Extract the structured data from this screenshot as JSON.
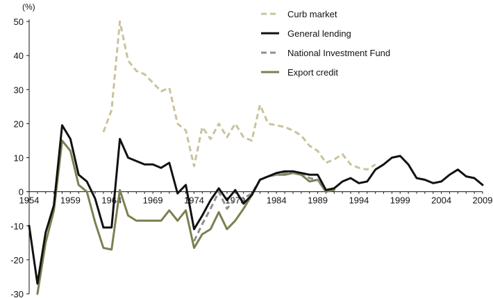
{
  "chart_data": {
    "type": "line",
    "y_unit": "(%)",
    "ylim": [
      -30,
      50
    ],
    "y_ticks": [
      -30,
      -20,
      -10,
      0,
      10,
      20,
      30,
      40,
      50
    ],
    "xlim": [
      1954,
      2009
    ],
    "x_ticks": [
      1954,
      1959,
      1964,
      1969,
      1974,
      1979,
      1984,
      1989,
      1994,
      1999,
      2004,
      2009
    ],
    "x_tick_labels": [
      "1954",
      "1959",
      "1964",
      "1969",
      "1974",
      "1979",
      "1984",
      "1989",
      "1994",
      "1999",
      "2004",
      "2009"
    ],
    "legend_position": "top-right",
    "grid": false,
    "series": [
      {
        "name": "Curb market",
        "color": "#c9c39c",
        "dash": "dashed",
        "x": [
          1963,
          1964,
          1965,
          1966,
          1967,
          1968,
          1969,
          1970,
          1971,
          1972,
          1973,
          1974,
          1975,
          1976,
          1977,
          1978,
          1979,
          1980,
          1981,
          1982,
          1983,
          1984,
          1985,
          1986,
          1987,
          1988,
          1989,
          1990,
          1991,
          1992,
          1993,
          1994,
          1995,
          1996
        ],
        "y": [
          17.5,
          24,
          50,
          38.5,
          35.5,
          34.5,
          32,
          29.5,
          30.5,
          20,
          18,
          7.5,
          19,
          15.5,
          20,
          16,
          20,
          16,
          15,
          25.5,
          20,
          19.5,
          19,
          18,
          16.5,
          13.5,
          12,
          8.5,
          9.5,
          11,
          8,
          7,
          6.5,
          8
        ]
      },
      {
        "name": "General lending",
        "color": "#111111",
        "dash": "solid",
        "x": [
          1954,
          1955,
          1956,
          1957,
          1958,
          1959,
          1960,
          1961,
          1962,
          1963,
          1964,
          1965,
          1966,
          1967,
          1968,
          1969,
          1970,
          1971,
          1972,
          1973,
          1974,
          1975,
          1976,
          1977,
          1978,
          1979,
          1980,
          1981,
          1982,
          1983,
          1984,
          1985,
          1986,
          1987,
          1988,
          1989,
          1990,
          1991,
          1992,
          1993,
          1994,
          1995,
          1996,
          1997,
          1998,
          1999,
          2000,
          2001,
          2002,
          2003,
          2004,
          2005,
          2006,
          2007,
          2008,
          2009
        ],
        "y": [
          -10,
          -27,
          -12,
          -4,
          19.5,
          15.5,
          5,
          3,
          -2,
          -10.5,
          -10.5,
          15.5,
          10,
          9,
          8,
          8,
          7,
          8.5,
          -0.5,
          2,
          -11,
          -7,
          -2.5,
          1,
          -2.5,
          0.5,
          -3.5,
          -1,
          3.5,
          4.5,
          5.5,
          6,
          6,
          5.5,
          5,
          5,
          0.5,
          1,
          3,
          4,
          2.5,
          3,
          6.5,
          8,
          10,
          10.5,
          8,
          4,
          3.5,
          2.5,
          3,
          5,
          6.5,
          4.5,
          4,
          2
        ]
      },
      {
        "name": "National Investment Fund",
        "color": "#8f8f8f",
        "dash": "dashed",
        "x": [
          1974,
          1975,
          1976,
          1977,
          1978,
          1979,
          1980,
          1981,
          1982,
          1983,
          1984,
          1985,
          1986,
          1987,
          1988,
          1989,
          1990
        ],
        "y": [
          -14.5,
          -9.5,
          -5,
          0,
          -5,
          -2,
          -2,
          -0.5,
          3.5,
          4.5,
          5,
          5.5,
          5.5,
          5.5,
          4,
          3.5,
          0.5
        ]
      },
      {
        "name": "Export credit",
        "color": "#7d7f4f",
        "dash": "solid",
        "x": [
          1954,
          1955,
          1956,
          1957,
          1958,
          1959,
          1960,
          1961,
          1962,
          1963,
          1964,
          1965,
          1966,
          1967,
          1968,
          1969,
          1970,
          1971,
          1972,
          1973,
          1974,
          1975,
          1976,
          1977,
          1978,
          1979,
          1980,
          1981,
          1982,
          1983,
          1984,
          1985,
          1986,
          1987,
          1988,
          1989,
          1990,
          1991
        ],
        "y": [
          null,
          -30,
          -15,
          -5.5,
          15,
          12,
          2,
          0,
          -9,
          -16.5,
          -17,
          0.5,
          -7,
          -8.5,
          -8.5,
          -8.5,
          -8.5,
          -5.5,
          -8.5,
          -5.5,
          -16.5,
          -12.5,
          -11,
          -6,
          -11,
          -8.5,
          -5,
          -1,
          3.5,
          4.5,
          5,
          5,
          5.5,
          5,
          3,
          3.5,
          0,
          0.5
        ]
      }
    ]
  }
}
